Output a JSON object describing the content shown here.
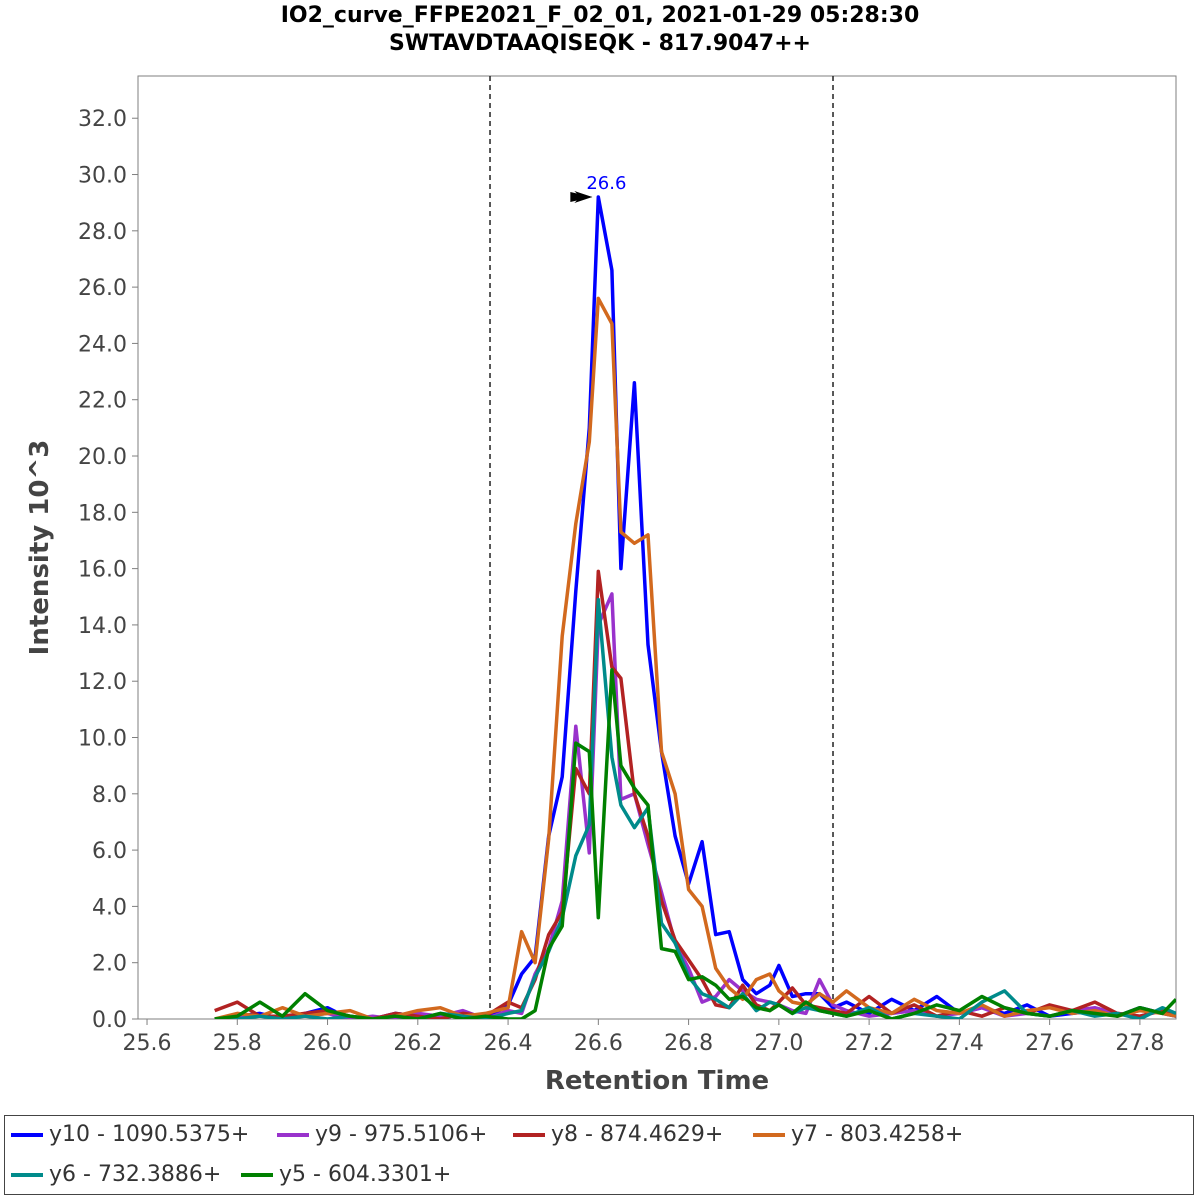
{
  "chart_data": {
    "type": "line",
    "title": "IO2_curve_FFPE2021_F_02_01, 2021-01-29 05:28:30",
    "subtitle": "SWTAVDTAAQISEQK - 817.9047++",
    "xlabel": "Retention Time",
    "ylabel": "Intensity 10^3",
    "xlim": [
      25.58,
      27.88
    ],
    "ylim": [
      0,
      33.5
    ],
    "x_ticks": [
      "25.6",
      "25.8",
      "26.0",
      "26.2",
      "26.4",
      "26.6",
      "26.8",
      "27.0",
      "27.2",
      "27.4",
      "27.6",
      "27.8"
    ],
    "y_ticks": [
      "0.0",
      "2.0",
      "4.0",
      "6.0",
      "8.0",
      "10.0",
      "12.0",
      "14.0",
      "16.0",
      "18.0",
      "20.0",
      "22.0",
      "24.0",
      "26.0",
      "28.0",
      "30.0",
      "32.0"
    ],
    "grid": false,
    "legend_position": "bottom",
    "boundaries": [
      26.36,
      27.12
    ],
    "peak_annotation": {
      "x": 26.6,
      "y": 29.2,
      "label": "26.6",
      "color": "#0000ff"
    },
    "series": [
      {
        "name": "y10 - 1090.5375+",
        "color": "#0000ff",
        "x": [
          25.75,
          25.8,
          25.85,
          25.9,
          25.95,
          26.0,
          26.05,
          26.1,
          26.15,
          26.2,
          26.25,
          26.3,
          26.35,
          26.4,
          26.43,
          26.46,
          26.49,
          26.52,
          26.55,
          26.58,
          26.6,
          26.63,
          26.65,
          26.68,
          26.71,
          26.74,
          26.77,
          26.8,
          26.83,
          26.86,
          26.89,
          26.92,
          26.95,
          26.98,
          27.0,
          27.03,
          27.06,
          27.09,
          27.12,
          27.15,
          27.2,
          27.25,
          27.3,
          27.35,
          27.4,
          27.45,
          27.5,
          27.55,
          27.6,
          27.65,
          27.7,
          27.75,
          27.8,
          27.85,
          27.88
        ],
        "y": [
          0.0,
          0.1,
          0.2,
          0.0,
          0.2,
          0.4,
          0.0,
          0.0,
          0.2,
          0.1,
          0.0,
          0.2,
          0.0,
          0.5,
          1.6,
          2.2,
          6.5,
          8.6,
          15.2,
          21.0,
          29.2,
          26.6,
          16.0,
          22.6,
          13.3,
          9.5,
          6.5,
          4.8,
          6.3,
          3.0,
          3.1,
          1.4,
          0.9,
          1.2,
          1.9,
          0.8,
          0.9,
          0.9,
          0.4,
          0.6,
          0.2,
          0.7,
          0.3,
          0.8,
          0.2,
          0.4,
          0.2,
          0.5,
          0.1,
          0.2,
          0.3,
          0.1,
          0.4,
          0.2,
          0.1
        ]
      },
      {
        "name": "y9 - 975.5106+",
        "color": "#9932cc",
        "x": [
          25.75,
          25.8,
          25.85,
          25.9,
          25.95,
          26.0,
          26.05,
          26.1,
          26.15,
          26.2,
          26.25,
          26.3,
          26.35,
          26.4,
          26.43,
          26.46,
          26.49,
          26.52,
          26.55,
          26.58,
          26.6,
          26.63,
          26.65,
          26.68,
          26.71,
          26.74,
          26.77,
          26.8,
          26.83,
          26.86,
          26.89,
          26.92,
          26.95,
          26.98,
          27.0,
          27.03,
          27.06,
          27.09,
          27.12,
          27.15,
          27.2,
          27.25,
          27.3,
          27.35,
          27.4,
          27.45,
          27.5,
          27.55,
          27.6,
          27.65,
          27.7,
          27.75,
          27.8,
          27.85,
          27.88
        ],
        "y": [
          0.0,
          0.1,
          0.1,
          0.1,
          0.1,
          0.2,
          0.0,
          0.1,
          0.0,
          0.2,
          0.1,
          0.3,
          0.0,
          0.3,
          0.2,
          1.6,
          2.5,
          4.2,
          10.4,
          5.9,
          14.0,
          15.1,
          7.8,
          8.0,
          6.2,
          4.5,
          2.7,
          1.8,
          0.6,
          0.8,
          1.4,
          1.0,
          0.7,
          0.6,
          0.5,
          0.3,
          0.2,
          1.4,
          0.5,
          0.3,
          0.1,
          0.2,
          0.3,
          0.1,
          0.2,
          0.4,
          0.1,
          0.2,
          0.1,
          0.3,
          0.4,
          0.2,
          0.1,
          0.3,
          0.2
        ]
      },
      {
        "name": "y8 - 874.4629+",
        "color": "#b22222",
        "x": [
          25.75,
          25.8,
          25.85,
          25.9,
          25.95,
          26.0,
          26.05,
          26.1,
          26.15,
          26.2,
          26.25,
          26.3,
          26.35,
          26.4,
          26.43,
          26.46,
          26.49,
          26.52,
          26.55,
          26.58,
          26.6,
          26.63,
          26.65,
          26.68,
          26.71,
          26.74,
          26.77,
          26.8,
          26.83,
          26.86,
          26.89,
          26.92,
          26.95,
          26.98,
          27.0,
          27.03,
          27.06,
          27.09,
          27.12,
          27.15,
          27.2,
          27.25,
          27.3,
          27.35,
          27.4,
          27.45,
          27.5,
          27.55,
          27.6,
          27.65,
          27.7,
          27.75,
          27.8,
          27.85,
          27.88
        ],
        "y": [
          0.3,
          0.6,
          0.1,
          0.1,
          0.2,
          0.3,
          0.1,
          0.0,
          0.2,
          0.1,
          0.0,
          0.2,
          0.1,
          0.6,
          0.4,
          1.4,
          3.0,
          3.8,
          8.9,
          8.0,
          15.9,
          12.5,
          12.1,
          8.0,
          6.5,
          4.2,
          2.8,
          2.1,
          1.4,
          0.5,
          0.4,
          1.2,
          0.5,
          0.3,
          0.6,
          1.1,
          0.5,
          0.4,
          0.3,
          0.2,
          0.8,
          0.2,
          0.5,
          0.1,
          0.3,
          0.1,
          0.4,
          0.2,
          0.5,
          0.3,
          0.6,
          0.2,
          0.1,
          0.3,
          0.2
        ]
      },
      {
        "name": "y7 - 803.4258+",
        "color": "#d2691e",
        "x": [
          25.75,
          25.8,
          25.85,
          25.9,
          25.95,
          26.0,
          26.05,
          26.1,
          26.15,
          26.2,
          26.25,
          26.3,
          26.35,
          26.4,
          26.43,
          26.46,
          26.49,
          26.52,
          26.55,
          26.58,
          26.6,
          26.63,
          26.65,
          26.68,
          26.71,
          26.74,
          26.77,
          26.8,
          26.83,
          26.86,
          26.89,
          26.92,
          26.95,
          26.98,
          27.0,
          27.03,
          27.06,
          27.09,
          27.12,
          27.15,
          27.2,
          27.25,
          27.3,
          27.35,
          27.4,
          27.45,
          27.5,
          27.55,
          27.6,
          27.65,
          27.7,
          27.75,
          27.8,
          27.85,
          27.88
        ],
        "y": [
          0.0,
          0.2,
          0.1,
          0.4,
          0.1,
          0.2,
          0.3,
          0.0,
          0.1,
          0.3,
          0.4,
          0.1,
          0.2,
          0.4,
          3.1,
          2.0,
          6.4,
          13.6,
          17.6,
          20.5,
          25.6,
          24.7,
          17.3,
          16.9,
          17.2,
          9.5,
          8.0,
          4.6,
          4.0,
          1.8,
          1.1,
          0.7,
          1.4,
          1.6,
          1.0,
          0.6,
          0.5,
          0.9,
          0.6,
          1.0,
          0.4,
          0.2,
          0.7,
          0.3,
          0.2,
          0.5,
          0.1,
          0.3,
          0.4,
          0.2,
          0.3,
          0.1,
          0.3,
          0.2,
          0.1
        ]
      },
      {
        "name": "y6 - 732.3886+",
        "color": "#008b8b",
        "x": [
          25.75,
          25.8,
          25.85,
          25.9,
          25.95,
          26.0,
          26.05,
          26.1,
          26.15,
          26.2,
          26.25,
          26.3,
          26.35,
          26.4,
          26.43,
          26.46,
          26.49,
          26.52,
          26.55,
          26.58,
          26.6,
          26.63,
          26.65,
          26.68,
          26.71,
          26.74,
          26.77,
          26.8,
          26.83,
          26.86,
          26.89,
          26.92,
          26.95,
          26.98,
          27.0,
          27.03,
          27.06,
          27.09,
          27.12,
          27.15,
          27.2,
          27.25,
          27.3,
          27.35,
          27.4,
          27.45,
          27.5,
          27.55,
          27.6,
          27.65,
          27.7,
          27.75,
          27.8,
          27.85,
          27.88
        ],
        "y": [
          0.0,
          0.0,
          0.1,
          0.0,
          0.1,
          0.0,
          0.1,
          0.0,
          0.1,
          0.0,
          0.2,
          0.1,
          0.0,
          0.2,
          0.3,
          1.5,
          2.4,
          3.6,
          5.8,
          6.9,
          14.9,
          9.3,
          7.6,
          6.8,
          7.5,
          3.4,
          2.7,
          1.5,
          0.9,
          0.7,
          0.4,
          0.9,
          0.3,
          0.6,
          0.5,
          0.2,
          0.4,
          0.3,
          0.2,
          0.1,
          0.4,
          0.0,
          0.2,
          0.1,
          0.0,
          0.6,
          1.0,
          0.2,
          0.1,
          0.3,
          0.1,
          0.2,
          0.0,
          0.4,
          0.2
        ]
      },
      {
        "name": "y5 - 604.3301+",
        "color": "#008000",
        "x": [
          25.75,
          25.8,
          25.85,
          25.9,
          25.95,
          26.0,
          26.05,
          26.1,
          26.15,
          26.2,
          26.25,
          26.3,
          26.35,
          26.4,
          26.43,
          26.46,
          26.49,
          26.52,
          26.55,
          26.58,
          26.6,
          26.63,
          26.65,
          26.68,
          26.71,
          26.74,
          26.77,
          26.8,
          26.83,
          26.86,
          26.89,
          26.92,
          26.95,
          26.98,
          27.0,
          27.03,
          27.06,
          27.09,
          27.12,
          27.15,
          27.2,
          27.25,
          27.3,
          27.35,
          27.4,
          27.45,
          27.5,
          27.55,
          27.6,
          27.65,
          27.7,
          27.75,
          27.8,
          27.85,
          27.88
        ],
        "y": [
          0.0,
          0.1,
          0.6,
          0.1,
          0.9,
          0.3,
          0.1,
          0.0,
          0.1,
          0.0,
          0.2,
          0.0,
          0.1,
          0.0,
          0.0,
          0.3,
          2.5,
          3.3,
          9.8,
          9.5,
          3.6,
          12.4,
          9.0,
          8.2,
          7.6,
          2.5,
          2.4,
          1.4,
          1.5,
          1.2,
          0.7,
          0.8,
          0.4,
          0.3,
          0.5,
          0.2,
          0.6,
          0.3,
          0.2,
          0.1,
          0.3,
          0.0,
          0.2,
          0.5,
          0.3,
          0.8,
          0.4,
          0.2,
          0.1,
          0.3,
          0.2,
          0.1,
          0.4,
          0.2,
          0.7
        ]
      }
    ]
  }
}
